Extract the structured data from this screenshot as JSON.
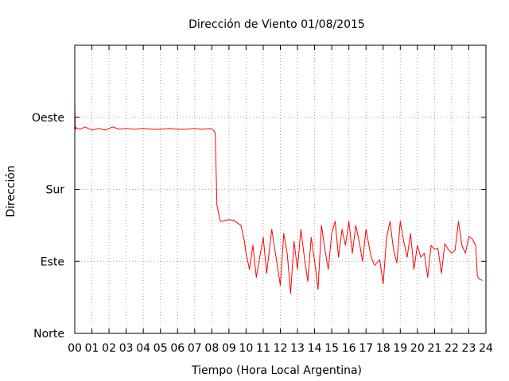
{
  "chart_data": {
    "type": "line",
    "title": "Dirección de Viento 01/08/2015",
    "xlabel": "Tiempo (Hora Local Argentina)",
    "ylabel": "Dirección",
    "xlim": [
      0,
      24
    ],
    "ylim": [
      0,
      360
    ],
    "grid": true,
    "x_ticks": [
      {
        "value": 0,
        "label": "00"
      },
      {
        "value": 1,
        "label": "01"
      },
      {
        "value": 2,
        "label": "02"
      },
      {
        "value": 3,
        "label": "03"
      },
      {
        "value": 4,
        "label": "04"
      },
      {
        "value": 5,
        "label": "05"
      },
      {
        "value": 6,
        "label": "06"
      },
      {
        "value": 7,
        "label": "07"
      },
      {
        "value": 8,
        "label": "08"
      },
      {
        "value": 9,
        "label": "09"
      },
      {
        "value": 10,
        "label": "10"
      },
      {
        "value": 11,
        "label": "11"
      },
      {
        "value": 12,
        "label": "12"
      },
      {
        "value": 13,
        "label": "13"
      },
      {
        "value": 14,
        "label": "14"
      },
      {
        "value": 15,
        "label": "15"
      },
      {
        "value": 16,
        "label": "16"
      },
      {
        "value": 17,
        "label": "17"
      },
      {
        "value": 18,
        "label": "18"
      },
      {
        "value": 19,
        "label": "19"
      },
      {
        "value": 20,
        "label": "20"
      },
      {
        "value": 21,
        "label": "21"
      },
      {
        "value": 22,
        "label": "22"
      },
      {
        "value": 23,
        "label": "23"
      },
      {
        "value": 24,
        "label": "24"
      }
    ],
    "y_ticks": [
      {
        "value": 0,
        "label": "Norte"
      },
      {
        "value": 90,
        "label": "Este"
      },
      {
        "value": 180,
        "label": "Sur"
      },
      {
        "value": 270,
        "label": "Oeste"
      }
    ],
    "series": [
      {
        "color": "#ff0000",
        "x": [
          0.0,
          0.03,
          0.05,
          0.1,
          0.3,
          0.6,
          1.0,
          1.4,
          1.8,
          2.2,
          2.6,
          3.0,
          3.5,
          4.0,
          4.5,
          5.0,
          5.5,
          6.0,
          6.5,
          7.0,
          7.5,
          7.9,
          8.1,
          8.2,
          8.3,
          8.5,
          9.0,
          9.3,
          9.5,
          9.7,
          9.9,
          10.0,
          10.2,
          10.4,
          10.6,
          10.8,
          11.0,
          11.2,
          11.5,
          11.8,
          12.0,
          12.2,
          12.4,
          12.6,
          12.8,
          13.0,
          13.2,
          13.4,
          13.6,
          13.8,
          14.0,
          14.2,
          14.4,
          14.6,
          14.8,
          15.0,
          15.2,
          15.4,
          15.6,
          15.8,
          16.0,
          16.2,
          16.4,
          16.6,
          16.8,
          17.0,
          17.3,
          17.5,
          17.8,
          18.0,
          18.2,
          18.4,
          18.6,
          18.8,
          19.0,
          19.2,
          19.4,
          19.6,
          19.8,
          20.0,
          20.2,
          20.4,
          20.6,
          20.8,
          21.0,
          21.2,
          21.4,
          21.6,
          21.8,
          22.0,
          22.2,
          22.4,
          22.6,
          22.8,
          23.0,
          23.2,
          23.4,
          23.5,
          23.6,
          23.8
        ],
        "y": [
          290,
          260,
          255,
          257,
          255,
          258,
          254,
          256,
          254,
          258,
          255,
          256,
          255,
          256,
          255,
          255,
          256,
          255,
          255,
          256,
          255,
          256,
          254,
          250,
          160,
          140,
          142,
          141,
          138,
          135,
          115,
          100,
          80,
          110,
          70,
          95,
          120,
          75,
          130,
          88,
          60,
          125,
          100,
          50,
          115,
          80,
          130,
          95,
          65,
          120,
          90,
          55,
          135,
          105,
          80,
          125,
          140,
          95,
          130,
          110,
          140,
          100,
          135,
          115,
          90,
          130,
          95,
          85,
          92,
          62,
          120,
          140,
          105,
          88,
          140,
          115,
          95,
          125,
          80,
          110,
          95,
          100,
          70,
          110,
          105,
          106,
          75,
          112,
          105,
          100,
          104,
          140,
          110,
          100,
          121,
          118,
          110,
          72,
          68,
          66
        ]
      }
    ]
  }
}
